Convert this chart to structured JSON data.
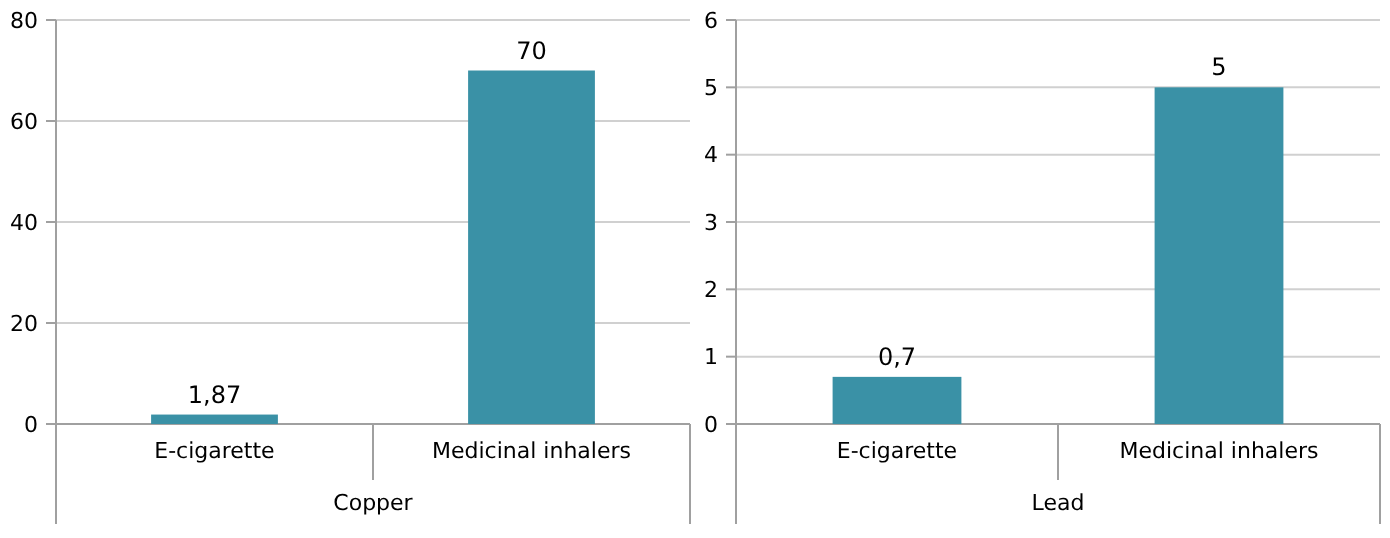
{
  "chart_data": [
    {
      "type": "bar",
      "xlabel": "Copper",
      "categories": [
        "E-cigarette",
        "Medicinal inhalers"
      ],
      "values": [
        1.87,
        70
      ],
      "value_labels": [
        "1,87",
        "70"
      ],
      "color": "#3a91a6",
      "ylim": [
        0,
        80
      ],
      "yticks": [
        0,
        20,
        40,
        60,
        80
      ],
      "grid": "y"
    },
    {
      "type": "bar",
      "xlabel": "Lead",
      "categories": [
        "E-cigarette",
        "Medicinal inhalers"
      ],
      "values": [
        0.7,
        5
      ],
      "value_labels": [
        "0,7",
        "5"
      ],
      "color": "#3a91a6",
      "ylim": [
        0,
        6
      ],
      "yticks": [
        0,
        1,
        2,
        3,
        4,
        5,
        6
      ],
      "grid": "y"
    }
  ]
}
